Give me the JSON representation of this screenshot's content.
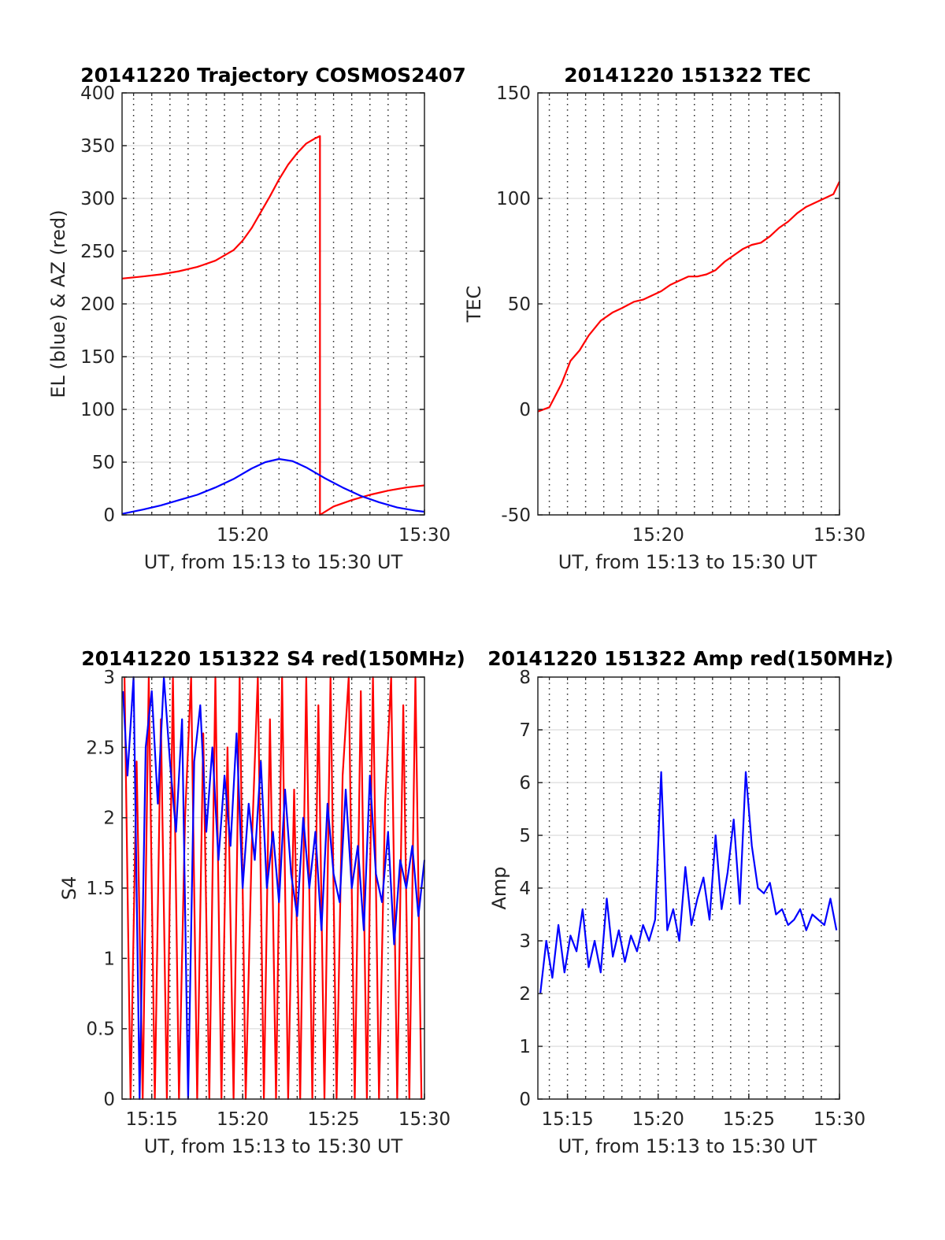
{
  "colors": {
    "red_series": "#ff0000",
    "blue_series": "#0000ff",
    "grid": "#dcdcdc",
    "axis": "#262626"
  },
  "chart_data": [
    {
      "id": "trajectory",
      "type": "line",
      "title": "20141220 Trajectory COSMOS2407",
      "xlabel": "UT, from 15:13 to 15:30 UT",
      "ylabel": "EL (blue) & AZ (red)",
      "xlim": [
        "15:13:22",
        "15:30:00"
      ],
      "ylim": [
        0,
        400
      ],
      "yticks": [
        0,
        50,
        100,
        150,
        200,
        250,
        300,
        350,
        400
      ],
      "xticks": [
        "15:20",
        "15:30"
      ],
      "grid": true,
      "series": [
        {
          "color": "red",
          "x": [
            "15:13:22",
            "15:14:30",
            "15:15:30",
            "15:16:30",
            "15:17:30",
            "15:18:30",
            "15:19:30",
            "15:20:00",
            "15:20:30",
            "15:21:00",
            "15:21:30",
            "15:22:00",
            "15:22:30",
            "15:23:00",
            "15:23:30",
            "15:24:00",
            "15:24:15",
            "15:24:15",
            "15:25:00",
            "15:26:00",
            "15:27:00",
            "15:28:00",
            "15:29:00",
            "15:30:00"
          ],
          "y": [
            224,
            226,
            228,
            231,
            235,
            241,
            251,
            260,
            272,
            287,
            302,
            318,
            332,
            343,
            352,
            357,
            359,
            0,
            8,
            14,
            19,
            23,
            26,
            28
          ]
        },
        {
          "color": "blue",
          "x": [
            "15:13:22",
            "15:14:30",
            "15:15:30",
            "15:16:30",
            "15:17:30",
            "15:18:30",
            "15:19:30",
            "15:20:30",
            "15:21:15",
            "15:22:00",
            "15:22:45",
            "15:23:30",
            "15:24:30",
            "15:25:30",
            "15:26:30",
            "15:27:30",
            "15:28:30",
            "15:29:30",
            "15:30:00"
          ],
          "y": [
            1,
            5,
            9,
            14,
            19,
            26,
            34,
            44,
            50,
            53,
            51,
            45,
            35,
            26,
            18,
            12,
            7,
            4,
            3
          ]
        }
      ]
    },
    {
      "id": "tec",
      "type": "line",
      "title": "20141220 151322 TEC",
      "xlabel": "UT, from 15:13 to 15:30 UT",
      "ylabel": "TEC",
      "xlim": [
        "15:13:22",
        "15:30:00"
      ],
      "ylim": [
        -50,
        150
      ],
      "yticks": [
        -50,
        0,
        50,
        100,
        150
      ],
      "xticks": [
        "15:20",
        "15:30"
      ],
      "grid": true,
      "series": [
        {
          "color": "red",
          "x": [
            "15:13:22",
            "15:14:00",
            "15:14:40",
            "15:15:10",
            "15:15:40",
            "15:16:10",
            "15:16:50",
            "15:17:30",
            "15:18:00",
            "15:18:40",
            "15:19:10",
            "15:19:40",
            "15:20:10",
            "15:20:40",
            "15:21:10",
            "15:21:40",
            "15:22:10",
            "15:22:40",
            "15:23:10",
            "15:23:40",
            "15:24:10",
            "15:24:40",
            "15:25:10",
            "15:25:40",
            "15:26:10",
            "15:26:40",
            "15:27:10",
            "15:27:40",
            "15:28:10",
            "15:28:40",
            "15:29:10",
            "15:29:40",
            "15:30:00"
          ],
          "y": [
            -1,
            1,
            12,
            23,
            28,
            35,
            42,
            46,
            48,
            51,
            52,
            54,
            56,
            59,
            61,
            63,
            63,
            64,
            66,
            70,
            73,
            76,
            78,
            79,
            82,
            86,
            89,
            93,
            96,
            98,
            100,
            102,
            108
          ]
        }
      ]
    },
    {
      "id": "s4",
      "type": "line",
      "title": "20141220 151322 S4 red(150MHz)",
      "xlabel": "UT, from 15:13 to 15:30 UT",
      "ylabel": "S4",
      "xlim": [
        "15:13:22",
        "15:30:00"
      ],
      "ylim": [
        0,
        3
      ],
      "yticks": [
        0,
        0.5,
        1,
        1.5,
        2,
        2.5,
        3
      ],
      "xticks": [
        "15:15",
        "15:20",
        "15:25",
        "15:30"
      ],
      "grid": true,
      "series": [
        {
          "color": "red",
          "x": [
            "15:13:30",
            "15:13:50",
            "15:14:10",
            "15:14:30",
            "15:14:50",
            "15:15:10",
            "15:15:30",
            "15:15:50",
            "15:16:10",
            "15:16:30",
            "15:16:50",
            "15:17:10",
            "15:17:30",
            "15:17:50",
            "15:18:10",
            "15:18:30",
            "15:18:50",
            "15:19:10",
            "15:19:30",
            "15:19:50",
            "15:20:10",
            "15:20:30",
            "15:20:50",
            "15:21:10",
            "15:21:30",
            "15:21:50",
            "15:22:10",
            "15:22:30",
            "15:22:50",
            "15:23:10",
            "15:23:30",
            "15:23:50",
            "15:24:10",
            "15:24:30",
            "15:24:50",
            "15:25:10",
            "15:25:30",
            "15:25:50",
            "15:26:10",
            "15:26:30",
            "15:26:50",
            "15:27:10",
            "15:27:30",
            "15:27:50",
            "15:28:10",
            "15:28:30",
            "15:28:50",
            "15:29:10",
            "15:29:30",
            "15:29:50"
          ],
          "y": [
            3,
            0,
            2.4,
            0,
            3,
            0,
            2.7,
            0,
            3,
            0,
            2,
            3,
            0,
            2.6,
            0,
            3,
            0,
            2.5,
            0,
            3,
            0,
            1.8,
            3,
            0,
            2.7,
            0,
            3,
            0,
            2.2,
            0,
            3,
            0,
            2.8,
            0,
            3,
            0,
            2.3,
            3,
            0,
            2.9,
            0,
            3,
            0,
            2.1,
            3,
            0,
            2.8,
            0,
            3,
            0
          ]
        },
        {
          "color": "blue",
          "x": [
            "15:13:25",
            "15:13:40",
            "15:14:00",
            "15:14:20",
            "15:14:40",
            "15:15:00",
            "15:15:20",
            "15:15:40",
            "15:16:00",
            "15:16:20",
            "15:16:40",
            "15:17:00",
            "15:17:20",
            "15:17:40",
            "15:18:00",
            "15:18:20",
            "15:18:40",
            "15:19:00",
            "15:19:20",
            "15:19:40",
            "15:20:00",
            "15:20:20",
            "15:20:40",
            "15:21:00",
            "15:21:20",
            "15:21:40",
            "15:22:00",
            "15:22:20",
            "15:22:40",
            "15:23:00",
            "15:23:20",
            "15:23:40",
            "15:24:00",
            "15:24:20",
            "15:24:40",
            "15:25:00",
            "15:25:20",
            "15:25:40",
            "15:26:00",
            "15:26:20",
            "15:26:40",
            "15:27:00",
            "15:27:20",
            "15:27:40",
            "15:28:00",
            "15:28:20",
            "15:28:40",
            "15:29:00",
            "15:29:20",
            "15:29:40",
            "15:30:00"
          ],
          "y": [
            2.9,
            2.3,
            3,
            0,
            2.5,
            2.9,
            2.1,
            3,
            2.4,
            1.9,
            2.7,
            0,
            2.4,
            2.8,
            1.9,
            2.5,
            1.7,
            2.3,
            1.8,
            2.6,
            1.5,
            2.1,
            1.7,
            2.4,
            1.5,
            1.9,
            1.4,
            2.2,
            1.6,
            1.3,
            2.0,
            1.5,
            1.9,
            1.2,
            2.1,
            1.6,
            1.4,
            2.2,
            1.5,
            1.8,
            1.2,
            2.3,
            1.6,
            1.4,
            1.9,
            1.1,
            1.7,
            1.5,
            1.8,
            1.3,
            1.7
          ]
        }
      ]
    },
    {
      "id": "amp",
      "type": "line",
      "title": "20141220 151322 Amp red(150MHz)",
      "xlabel": "UT, from 15:13 to 15:30 UT",
      "ylabel": "Amp",
      "xlim": [
        "15:13:22",
        "15:30:00"
      ],
      "ylim": [
        0,
        8
      ],
      "yticks": [
        0,
        1,
        2,
        3,
        4,
        5,
        6,
        7,
        8
      ],
      "xticks": [
        "15:15",
        "15:20",
        "15:25",
        "15:30"
      ],
      "grid": true,
      "series": [
        {
          "color": "blue",
          "x": [
            "15:13:30",
            "15:13:50",
            "15:14:10",
            "15:14:30",
            "15:14:50",
            "15:15:10",
            "15:15:30",
            "15:15:50",
            "15:16:10",
            "15:16:30",
            "15:16:50",
            "15:17:10",
            "15:17:30",
            "15:17:50",
            "15:18:10",
            "15:18:30",
            "15:18:50",
            "15:19:10",
            "15:19:30",
            "15:19:50",
            "15:20:10",
            "15:20:30",
            "15:20:50",
            "15:21:10",
            "15:21:30",
            "15:21:50",
            "15:22:10",
            "15:22:30",
            "15:22:50",
            "15:23:10",
            "15:23:30",
            "15:23:50",
            "15:24:10",
            "15:24:30",
            "15:24:50",
            "15:25:10",
            "15:25:30",
            "15:25:50",
            "15:26:10",
            "15:26:30",
            "15:26:50",
            "15:27:10",
            "15:27:30",
            "15:27:50",
            "15:28:10",
            "15:28:30",
            "15:28:50",
            "15:29:10",
            "15:29:30",
            "15:29:50"
          ],
          "y": [
            2.0,
            3.0,
            2.3,
            3.3,
            2.4,
            3.1,
            2.8,
            3.6,
            2.5,
            3.0,
            2.4,
            3.8,
            2.7,
            3.2,
            2.6,
            3.1,
            2.8,
            3.3,
            3.0,
            3.4,
            6.2,
            3.2,
            3.6,
            3.0,
            4.4,
            3.3,
            3.8,
            4.2,
            3.4,
            5.0,
            3.6,
            4.3,
            5.3,
            3.7,
            6.2,
            4.8,
            4.0,
            3.9,
            4.1,
            3.5,
            3.6,
            3.3,
            3.4,
            3.6,
            3.2,
            3.5,
            3.4,
            3.3,
            3.8,
            3.2
          ]
        }
      ]
    }
  ]
}
